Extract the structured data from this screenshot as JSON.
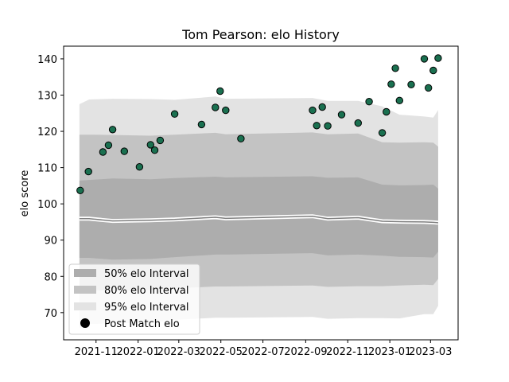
{
  "chart_data": {
    "type": "scatter",
    "title": "Tom Pearson: elo History",
    "xlabel": "",
    "ylabel": "elo score",
    "xlim": [
      "2021-09-15",
      "2023-04-10"
    ],
    "ylim": [
      62.5,
      143.5
    ],
    "yticks": [
      70,
      80,
      90,
      100,
      110,
      120,
      130,
      140
    ],
    "xticks": [
      "2021-11",
      "2022-01",
      "2022-03",
      "2022-05",
      "2022-07",
      "2022-09",
      "2022-11",
      "2023-01",
      "2023-03"
    ],
    "grid": false,
    "legend_position": "lower-left",
    "legend": [
      {
        "label": "50% elo Interval",
        "color": "#adadad"
      },
      {
        "label": "80% elo Interval",
        "color": "#c3c3c3"
      },
      {
        "label": "95% elo Interval",
        "color": "#e3e3e3"
      },
      {
        "label": "Post Match elo",
        "color": "#000000"
      }
    ],
    "points_color": "#1a7050",
    "points": [
      {
        "x": "2021-10-09",
        "y": 103.7
      },
      {
        "x": "2021-10-21",
        "y": 108.9
      },
      {
        "x": "2021-11-11",
        "y": 114.3
      },
      {
        "x": "2021-11-19",
        "y": 116.2
      },
      {
        "x": "2021-11-25",
        "y": 120.5
      },
      {
        "x": "2021-12-12",
        "y": 114.5
      },
      {
        "x": "2022-01-03",
        "y": 110.2
      },
      {
        "x": "2022-01-19",
        "y": 116.3
      },
      {
        "x": "2022-01-25",
        "y": 114.8
      },
      {
        "x": "2022-02-02",
        "y": 117.5
      },
      {
        "x": "2022-02-23",
        "y": 124.8
      },
      {
        "x": "2022-04-03",
        "y": 121.9
      },
      {
        "x": "2022-04-23",
        "y": 126.6
      },
      {
        "x": "2022-04-30",
        "y": 131.1
      },
      {
        "x": "2022-05-08",
        "y": 125.8
      },
      {
        "x": "2022-05-30",
        "y": 118.0
      },
      {
        "x": "2022-09-11",
        "y": 125.8
      },
      {
        "x": "2022-09-17",
        "y": 121.6
      },
      {
        "x": "2022-09-25",
        "y": 126.7
      },
      {
        "x": "2022-10-03",
        "y": 121.5
      },
      {
        "x": "2022-10-23",
        "y": 124.6
      },
      {
        "x": "2022-11-16",
        "y": 122.3
      },
      {
        "x": "2022-12-02",
        "y": 128.2
      },
      {
        "x": "2022-12-21",
        "y": 119.6
      },
      {
        "x": "2022-12-27",
        "y": 125.4
      },
      {
        "x": "2023-01-03",
        "y": 133.0
      },
      {
        "x": "2023-01-09",
        "y": 137.4
      },
      {
        "x": "2023-01-15",
        "y": 128.5
      },
      {
        "x": "2023-02-01",
        "y": 132.9
      },
      {
        "x": "2023-02-20",
        "y": 140.0
      },
      {
        "x": "2023-02-26",
        "y": 132.0
      },
      {
        "x": "2023-03-05",
        "y": 136.8
      },
      {
        "x": "2023-03-12",
        "y": 140.2
      }
    ],
    "bands": {
      "x": [
        "2021-10-08",
        "2021-10-22",
        "2021-11-25",
        "2022-01-19",
        "2022-02-23",
        "2022-04-23",
        "2022-05-08",
        "2022-09-11",
        "2022-10-03",
        "2022-11-16",
        "2022-12-21",
        "2023-01-15",
        "2023-02-20",
        "2023-03-05",
        "2023-03-12"
      ],
      "median": [
        95.9,
        95.9,
        95.3,
        95.5,
        95.7,
        96.3,
        96.0,
        96.6,
        95.9,
        96.2,
        95.2,
        95.1,
        95.0,
        94.9,
        94.8
      ],
      "p50_low": [
        85.1,
        85.1,
        84.6,
        84.8,
        85.3,
        86.0,
        86.0,
        86.4,
        85.8,
        86.0,
        85.7,
        85.4,
        85.3,
        85.2,
        86.8
      ],
      "p50_high": [
        106.4,
        106.6,
        107.0,
        106.8,
        107.1,
        107.5,
        107.3,
        107.6,
        107.2,
        107.3,
        105.3,
        105.1,
        105.2,
        105.3,
        104.2
      ],
      "p80_low": [
        77.4,
        76.3,
        76.0,
        76.3,
        76.7,
        77.2,
        77.2,
        77.5,
        77.1,
        77.3,
        77.3,
        77.5,
        77.7,
        77.6,
        79.3
      ],
      "p80_high": [
        119.1,
        119.1,
        119.0,
        118.8,
        119.1,
        119.6,
        119.2,
        119.7,
        119.2,
        119.4,
        117.0,
        116.9,
        117.0,
        116.9,
        115.8
      ],
      "p95_low": [
        65.8,
        66.9,
        67.0,
        67.3,
        68.0,
        68.6,
        68.6,
        68.8,
        68.3,
        68.5,
        68.5,
        68.4,
        69.6,
        69.6,
        71.9
      ],
      "p95_high": [
        127.5,
        128.8,
        129.0,
        128.9,
        128.7,
        129.6,
        129.0,
        129.2,
        128.4,
        128.4,
        126.9,
        124.6,
        124.1,
        123.8,
        125.9
      ]
    },
    "colors": {
      "band_50": "#adadad",
      "band_80": "#c3c3c3",
      "band_95": "#e3e3e3",
      "median_line": "#7f7f7f"
    }
  }
}
